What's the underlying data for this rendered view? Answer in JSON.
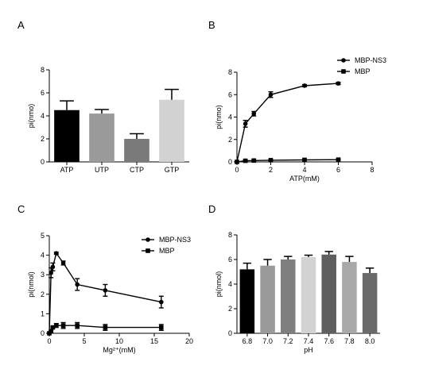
{
  "chart_data": [
    {
      "panel": "A",
      "type": "bar",
      "ylabel": "pi(nmo)",
      "xlabel": "",
      "categories": [
        "ATP",
        "UTP",
        "CTP",
        "GTP"
      ],
      "values": [
        4.5,
        4.2,
        2.0,
        5.4
      ],
      "errors": [
        0.8,
        0.35,
        0.45,
        0.9
      ],
      "colors": [
        "#000000",
        "#9a9a9a",
        "#7a7a7a",
        "#d2d2d2"
      ],
      "ylim": [
        0,
        8
      ],
      "yticks": [
        "0",
        "2",
        "4",
        "6",
        "8"
      ],
      "grid": false
    },
    {
      "panel": "B",
      "type": "line",
      "ylabel": "pi(nmo)",
      "xlabel": "ATP(mM)",
      "xlim": [
        0,
        8
      ],
      "ylim": [
        0,
        8
      ],
      "xticks": [
        "0",
        "2",
        "4",
        "6",
        "8"
      ],
      "yticks": [
        "0",
        "2",
        "4",
        "6",
        "8"
      ],
      "legend": "top-right",
      "grid": false,
      "series": [
        {
          "name": "MBP-NS3",
          "marker": "circle",
          "x": [
            0,
            0.5,
            1,
            2,
            4,
            6
          ],
          "y": [
            0,
            3.4,
            4.3,
            6.0,
            6.8,
            7.0
          ],
          "errors": [
            0,
            0.3,
            0.2,
            0.25,
            0.1,
            0.1
          ]
        },
        {
          "name": "MBP",
          "marker": "square",
          "x": [
            0,
            0.5,
            1,
            2,
            4,
            6
          ],
          "y": [
            0,
            0.1,
            0.12,
            0.15,
            0.18,
            0.2
          ],
          "errors": [
            0,
            0.05,
            0.05,
            0.05,
            0.05,
            0.05
          ]
        }
      ]
    },
    {
      "panel": "C",
      "type": "line",
      "ylabel": "pi(nmol)",
      "xlabel": "Mg²⁺(mM)",
      "xlim": [
        0,
        20
      ],
      "ylim": [
        0,
        5
      ],
      "xticks": [
        "0",
        "5",
        "10",
        "15",
        "20"
      ],
      "yticks": [
        "0",
        "1",
        "2",
        "3",
        "4",
        "5"
      ],
      "legend": "top-right",
      "grid": false,
      "series": [
        {
          "name": "MBP-NS3",
          "marker": "circle",
          "x": [
            0,
            0.25,
            0.5,
            1,
            2,
            4,
            8,
            16
          ],
          "y": [
            0,
            3.1,
            3.4,
            4.1,
            3.6,
            2.5,
            2.2,
            1.6
          ],
          "errors": [
            0,
            0.25,
            0.2,
            0.05,
            0.1,
            0.3,
            0.3,
            0.3
          ]
        },
        {
          "name": "MBP",
          "marker": "square",
          "x": [
            0,
            0.25,
            0.5,
            1,
            2,
            4,
            8,
            16
          ],
          "y": [
            0,
            0.1,
            0.3,
            0.4,
            0.4,
            0.4,
            0.3,
            0.3
          ],
          "errors": [
            0,
            0.05,
            0.05,
            0.1,
            0.15,
            0.15,
            0.15,
            0.15
          ]
        }
      ]
    },
    {
      "panel": "D",
      "type": "bar",
      "ylabel": "pi(nmol)",
      "xlabel": "pH",
      "categories": [
        "6.8",
        "7.0",
        "7.2",
        "7.4",
        "7.6",
        "7.8",
        "8.0"
      ],
      "values": [
        5.2,
        5.5,
        6.0,
        6.2,
        6.4,
        5.8,
        4.9
      ],
      "errors": [
        0.5,
        0.5,
        0.25,
        0.15,
        0.25,
        0.45,
        0.4
      ],
      "colors": [
        "#000000",
        "#9a9a9a",
        "#7f7f7f",
        "#d2d2d2",
        "#5f5f5f",
        "#a8a8a8",
        "#6a6a6a"
      ],
      "ylim": [
        0,
        8
      ],
      "yticks": [
        "0",
        "2",
        "4",
        "6",
        "8"
      ],
      "grid": false
    }
  ]
}
